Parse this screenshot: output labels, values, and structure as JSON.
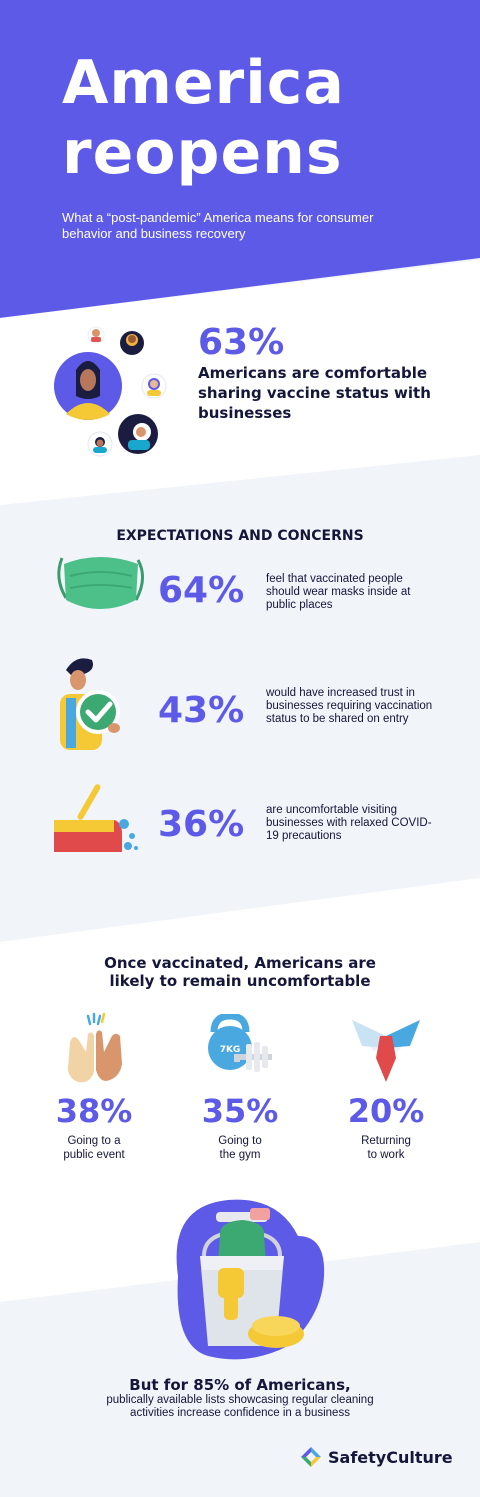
{
  "hero": {
    "title_line1": "America",
    "title_line2": "reopens",
    "subtitle": "What a “post-pandemic” America  means for consumer behavior and business recovery"
  },
  "stat_vaccine": {
    "percent": "63%",
    "text": "Americans are comfortable sharing vaccine status with businesses"
  },
  "expectations": {
    "heading": "EXPECTATIONS AND CONCERNS",
    "items": [
      {
        "percent": "64%",
        "text": "feel that vaccinated people should wear masks inside at public places",
        "icon": "face-mask-icon"
      },
      {
        "percent": "43%",
        "text": "would have increased trust in businesses requiring vaccination status to be shared on entry",
        "icon": "verified-person-icon"
      },
      {
        "percent": "36%",
        "text": "are uncomfortable visiting businesses with relaxed COVID-19 precautions",
        "icon": "cleaning-broom-icon"
      }
    ]
  },
  "uncomfortable": {
    "heading_line1": "Once vaccinated, Americans are",
    "heading_line2": "likely to remain uncomfortable",
    "items": [
      {
        "percent": "38%",
        "label_line1": "Going to a",
        "label_line2": "public event",
        "icon": "clapping-hands-icon"
      },
      {
        "percent": "35%",
        "label_line1": "Going to",
        "label_line2": "the gym",
        "icon": "kettlebell-icon",
        "kettlebell_text": "7KG"
      },
      {
        "percent": "20%",
        "label_line1": "Returning",
        "label_line2": "to work",
        "icon": "shirt-collar-tie-icon"
      }
    ]
  },
  "closing": {
    "bold": "But for 85% of Americans,",
    "text": "publically available lists showcasing regular cleaning activities increase confidence in a business",
    "icon": "cleaning-bucket-icon"
  },
  "brand": {
    "name": "SafetyCulture",
    "icon": "safetyculture-logo-icon"
  },
  "colors": {
    "primary": "#5d5ae8",
    "dark": "#14163a",
    "background": "#f1f4f9",
    "white": "#ffffff"
  }
}
